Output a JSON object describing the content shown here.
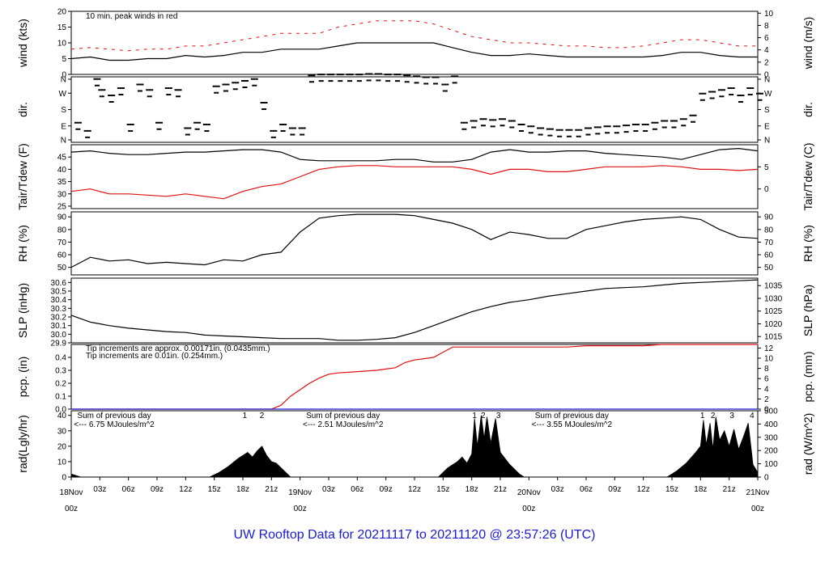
{
  "title": "UW Rooftop Data for 20211117  to  20211120 @ 23:57:26  (UTC)",
  "colors": {
    "title": "#1a1ad6",
    "red": "#e01010",
    "blue": "#1a1ad6",
    "purple": "#9933cc",
    "black": "#000000"
  },
  "x_axis": {
    "range_hours": [
      0,
      72
    ],
    "hour_ticks": [
      "03z",
      "06z",
      "09z",
      "12z",
      "15z",
      "18z",
      "21z"
    ],
    "day_labels": [
      {
        "hour": 0,
        "date": "18Nov",
        "time": "00z"
      },
      {
        "hour": 24,
        "date": "19Nov",
        "time": "00z"
      },
      {
        "hour": 48,
        "date": "20Nov",
        "time": "00z"
      },
      {
        "hour": 72,
        "date": "21Nov",
        "time": "00z"
      }
    ]
  },
  "chart_data": [
    {
      "type": "line",
      "id": "wind",
      "ylabel_left": "wind (kts)",
      "ylabel_right": "wind (m/s)",
      "ylim": [
        0,
        20
      ],
      "yticks": [
        0,
        5,
        10,
        15,
        20
      ],
      "ylim_right": [
        0,
        10.3
      ],
      "yticks_right": [
        0,
        2,
        4,
        6,
        8,
        10
      ],
      "annotation": "10 min. peak winds in red",
      "series": [
        {
          "color": "#000000",
          "x": [
            0,
            2,
            4,
            6,
            8,
            10,
            12,
            14,
            16,
            18,
            20,
            22,
            24,
            26,
            28,
            30,
            32,
            34,
            36,
            38,
            40,
            42,
            44,
            46,
            48,
            50,
            52,
            54,
            56,
            58,
            60,
            62,
            64,
            66,
            68,
            70,
            72
          ],
          "y": [
            5,
            5.5,
            4.5,
            4.5,
            5,
            5,
            6,
            5.5,
            6,
            7,
            7,
            8,
            8,
            8,
            9,
            10,
            10,
            10,
            10,
            10,
            8.5,
            7,
            6,
            6,
            6.5,
            6,
            5.5,
            5.5,
            5.5,
            5.5,
            5.5,
            6,
            7,
            7,
            6,
            5.5,
            5.5
          ]
        },
        {
          "color": "#e01010",
          "style": "dashes",
          "x": [
            0,
            2,
            4,
            6,
            8,
            10,
            12,
            14,
            16,
            18,
            20,
            22,
            24,
            26,
            28,
            30,
            32,
            34,
            36,
            38,
            40,
            42,
            44,
            46,
            48,
            50,
            52,
            54,
            56,
            58,
            60,
            62,
            64,
            66,
            68,
            70,
            72
          ],
          "y": [
            8,
            8.5,
            8,
            7.5,
            8,
            8,
            9,
            9,
            10,
            11,
            12,
            13,
            13,
            13,
            15,
            16,
            17,
            17,
            17,
            16,
            14,
            12,
            11,
            10,
            10,
            9.5,
            9,
            9,
            8.5,
            8.5,
            9,
            10,
            11,
            11,
            10,
            9,
            9
          ]
        }
      ]
    },
    {
      "type": "scatter",
      "id": "dir",
      "ylabel_left": "dir.",
      "ylabel_right": "dir.",
      "yticks_labels": [
        "N",
        "E",
        "S",
        "W",
        "N"
      ],
      "ylim": [
        0,
        360
      ],
      "series": [
        {
          "color": "#000000",
          "x": [
            0.5,
            1.5,
            2.5,
            3,
            4,
            5,
            6,
            7,
            8,
            9,
            10,
            11,
            12,
            13,
            14,
            15,
            16,
            17,
            18,
            19,
            20,
            21,
            22,
            23,
            24,
            25,
            26,
            27,
            28,
            29,
            30,
            31,
            32,
            33,
            34,
            35,
            36,
            37,
            38,
            39,
            40,
            41,
            42,
            43,
            44,
            45,
            46,
            47,
            48,
            49,
            50,
            51,
            52,
            53,
            54,
            55,
            56,
            57,
            58,
            59,
            60,
            61,
            62,
            63,
            64,
            65,
            66,
            67,
            68,
            69,
            70,
            71,
            72
          ],
          "y": [
            90,
            45,
            330,
            270,
            240,
            280,
            80,
            300,
            270,
            90,
            280,
            270,
            60,
            90,
            80,
            290,
            300,
            310,
            320,
            330,
            200,
            45,
            80,
            60,
            60,
            350,
            355,
            355,
            355,
            355,
            355,
            358,
            358,
            355,
            355,
            350,
            345,
            340,
            340,
            300,
            345,
            90,
            100,
            110,
            105,
            110,
            100,
            80,
            70,
            60,
            55,
            50,
            50,
            50,
            60,
            65,
            70,
            70,
            75,
            80,
            80,
            90,
            100,
            100,
            110,
            130,
            250,
            260,
            270,
            280,
            240,
            280,
            250
          ]
        }
      ]
    },
    {
      "type": "line",
      "id": "temp",
      "ylabel_left": "Tair/Tdew (F)",
      "ylabel_right": "Tair/Tdew (C)",
      "ylim": [
        24,
        50
      ],
      "yticks": [
        25,
        30,
        35,
        40,
        45
      ],
      "yticks_right": [
        0,
        5
      ],
      "series": [
        {
          "color": "#000000",
          "x": [
            0,
            2,
            4,
            6,
            8,
            10,
            12,
            14,
            16,
            18,
            20,
            22,
            24,
            26,
            28,
            30,
            32,
            34,
            36,
            38,
            40,
            42,
            44,
            46,
            48,
            50,
            52,
            54,
            56,
            58,
            60,
            62,
            64,
            66,
            68,
            70,
            72
          ],
          "y": [
            47,
            47.5,
            46.5,
            46,
            46,
            46.5,
            47,
            47,
            47.5,
            48,
            48,
            47,
            44,
            43.5,
            43.5,
            43.5,
            43.5,
            44,
            44,
            43,
            43,
            44,
            47,
            48,
            47,
            47,
            47.5,
            47.5,
            46.5,
            46,
            45.5,
            45,
            44,
            46,
            48,
            48.5,
            47.5
          ]
        },
        {
          "color": "#e01010",
          "x": [
            0,
            2,
            4,
            6,
            8,
            10,
            12,
            14,
            16,
            18,
            20,
            22,
            24,
            26,
            28,
            30,
            32,
            34,
            36,
            38,
            40,
            42,
            44,
            46,
            48,
            50,
            52,
            54,
            56,
            58,
            60,
            62,
            64,
            66,
            68,
            70,
            72
          ],
          "y": [
            31,
            32,
            30,
            30,
            29.5,
            29,
            30,
            29,
            28,
            31,
            33,
            34,
            37,
            40,
            41,
            41.5,
            41.5,
            41,
            41,
            41,
            41,
            40,
            38,
            40,
            40,
            39,
            39,
            40,
            41,
            41,
            41,
            41.5,
            41,
            40,
            40,
            39.5,
            40
          ]
        }
      ]
    },
    {
      "type": "line",
      "id": "rh",
      "ylabel_left": "RH (%)",
      "ylabel_right": "RH (%)",
      "ylim": [
        44,
        94
      ],
      "yticks": [
        50,
        60,
        70,
        80,
        90
      ],
      "series": [
        {
          "color": "#000000",
          "x": [
            0,
            2,
            4,
            6,
            8,
            10,
            12,
            14,
            16,
            18,
            20,
            22,
            24,
            26,
            28,
            30,
            32,
            34,
            36,
            38,
            40,
            42,
            44,
            46,
            48,
            50,
            52,
            54,
            56,
            58,
            60,
            62,
            64,
            66,
            68,
            70,
            72
          ],
          "y": [
            50,
            58,
            55,
            56,
            53,
            54,
            53,
            52,
            56,
            55,
            60,
            62,
            78,
            89,
            91,
            92,
            92,
            92,
            91,
            88,
            85,
            80,
            72,
            78,
            76,
            73,
            73,
            80,
            83,
            86,
            88,
            89,
            90,
            88,
            80,
            74,
            73
          ]
        }
      ]
    },
    {
      "type": "line",
      "id": "slp",
      "ylabel_left": "SLP (inHg)",
      "ylabel_right": "SLP (hPa)",
      "ylim": [
        29.9,
        30.65
      ],
      "yticks": [
        29.9,
        30.0,
        30.1,
        30.2,
        30.3,
        30.4,
        30.5,
        30.6
      ],
      "yticks_right": [
        1015,
        1020,
        1025,
        1030,
        1035
      ],
      "series": [
        {
          "color": "#000000",
          "x": [
            0,
            2,
            4,
            6,
            8,
            10,
            12,
            14,
            16,
            18,
            20,
            22,
            24,
            26,
            28,
            30,
            32,
            34,
            36,
            38,
            40,
            42,
            44,
            46,
            48,
            50,
            52,
            54,
            56,
            58,
            60,
            62,
            64,
            66,
            68,
            70,
            72
          ],
          "y": [
            30.22,
            30.14,
            30.1,
            30.07,
            30.05,
            30.03,
            30.02,
            29.99,
            29.98,
            29.97,
            29.96,
            29.95,
            29.95,
            29.95,
            29.93,
            29.93,
            29.94,
            29.96,
            30.02,
            30.1,
            30.18,
            30.26,
            30.32,
            30.37,
            30.4,
            30.44,
            30.47,
            30.5,
            30.53,
            30.54,
            30.55,
            30.57,
            30.59,
            30.6,
            30.61,
            30.62,
            30.63
          ]
        }
      ]
    },
    {
      "type": "line",
      "id": "pcp",
      "ylabel_left": "pcp. (in)",
      "ylabel_right": "pcp. (mm)",
      "ylim": [
        0,
        0.5
      ],
      "yticks": [
        0.0,
        0.1,
        0.2,
        0.3,
        0.4
      ],
      "yticks_right": [
        0,
        2,
        4,
        6,
        8,
        10,
        12
      ],
      "notes": [
        "Tip increments are approx. 0.00171in. (0.0435mm.)",
        "Tip increments are 0.01in. (0.254mm.)"
      ],
      "series": [
        {
          "color": "#e01010",
          "x": [
            0,
            21,
            22,
            23,
            24,
            25,
            26,
            27,
            28,
            30,
            32,
            33,
            34,
            35,
            36,
            37,
            38,
            39,
            40,
            41,
            42,
            44,
            52,
            54,
            56,
            58,
            60,
            62,
            64,
            66,
            68,
            70,
            72
          ],
          "y": [
            0,
            0,
            0.03,
            0.1,
            0.15,
            0.2,
            0.24,
            0.27,
            0.28,
            0.29,
            0.3,
            0.31,
            0.32,
            0.36,
            0.38,
            0.39,
            0.4,
            0.44,
            0.48,
            0.48,
            0.48,
            0.48,
            0.48,
            0.49,
            0.49,
            0.49,
            0.49,
            0.5,
            0.5,
            0.5,
            0.5,
            0.5,
            0.5
          ]
        },
        {
          "color": "#1a1ad6",
          "x": [
            0,
            72
          ],
          "y": [
            0,
            0
          ]
        }
      ]
    },
    {
      "type": "area",
      "id": "rad",
      "ylabel_left": "rad(Lgly/hr)",
      "ylabel_right": "rad (W/m^2)",
      "ylim": [
        0,
        43
      ],
      "yticks": [
        0,
        10,
        20,
        30,
        40
      ],
      "yticks_right": [
        0,
        100,
        200,
        300,
        400,
        500
      ],
      "daily_notes": [
        {
          "hour": 4.5,
          "line1": "Sum of previous day",
          "line2": "<--- 6.75 MJoules/m^2"
        },
        {
          "hour": 28.5,
          "line1": "Sum of previous day",
          "line2": "<--- 2.51 MJoules/m^2"
        },
        {
          "hour": 52.5,
          "line1": "Sum of previous day",
          "line2": "<--- 3.55 MJoules/m^2"
        }
      ],
      "markers": [
        {
          "hour": 18.2,
          "label": "1"
        },
        {
          "hour": 20.0,
          "label": "2"
        },
        {
          "hour": 42.3,
          "label": "1"
        },
        {
          "hour": 43.2,
          "label": "2"
        },
        {
          "hour": 44.8,
          "label": "3"
        },
        {
          "hour": 66.2,
          "label": "1"
        },
        {
          "hour": 67.3,
          "label": "2"
        },
        {
          "hour": 69.3,
          "label": "3"
        },
        {
          "hour": 71.4,
          "label": "4"
        }
      ],
      "series": [
        {
          "color": "#000000",
          "x": [
            0,
            0.5,
            1,
            14.5,
            15.5,
            16.5,
            17.5,
            18,
            18.5,
            19,
            19.5,
            20,
            20.5,
            21,
            21.5,
            22.5,
            23,
            38.5,
            39.5,
            40.5,
            41,
            41.5,
            42,
            42.3,
            42.6,
            43,
            43.3,
            43.6,
            44,
            44.5,
            45,
            45.5,
            46,
            47,
            47.5,
            62.5,
            63.5,
            64.5,
            65.5,
            66,
            66.3,
            66.6,
            67,
            67.3,
            67.6,
            68,
            68.5,
            69,
            69.5,
            70,
            70.5,
            71,
            71.5,
            72
          ],
          "y": [
            2,
            1,
            0,
            0,
            3,
            7,
            12,
            14,
            16,
            13,
            17,
            20,
            14,
            10,
            9,
            3,
            0,
            0,
            6,
            10,
            13,
            9,
            15,
            38,
            20,
            40,
            25,
            39,
            22,
            38,
            16,
            12,
            8,
            2,
            0,
            0,
            4,
            9,
            16,
            20,
            37,
            21,
            35,
            18,
            39,
            24,
            30,
            20,
            31,
            18,
            26,
            35,
            8,
            3
          ]
        }
      ]
    }
  ]
}
